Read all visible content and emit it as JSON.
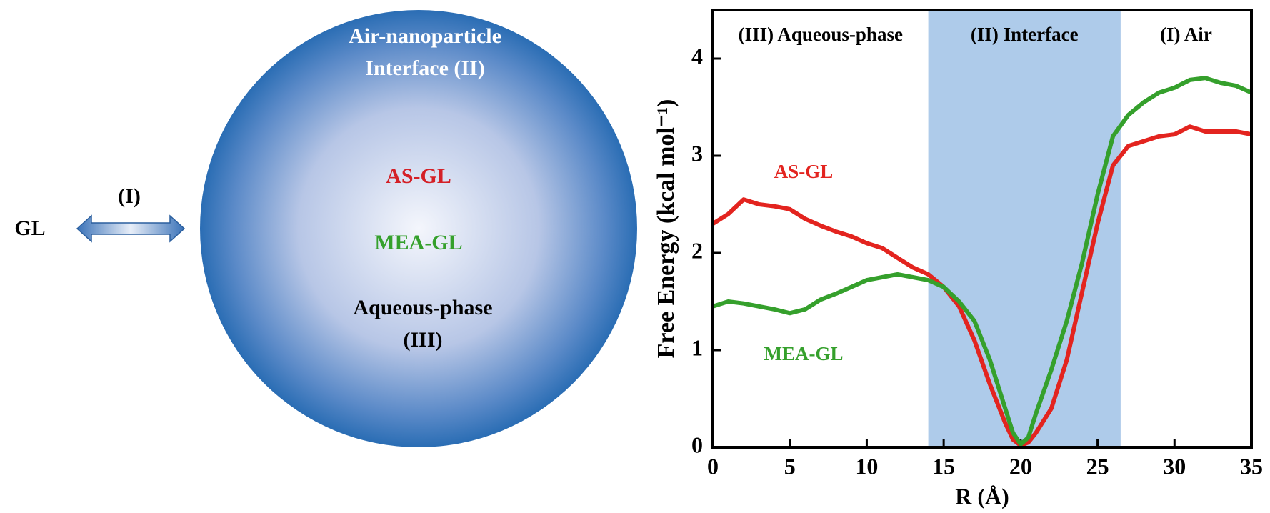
{
  "diagram": {
    "left_label": "GL",
    "arrow_label": "(I)",
    "sphere_top": [
      "Air-nanoparticle",
      "Interface (II)"
    ],
    "sphere_species": [
      {
        "text": "AS-GL",
        "color": "#d42027"
      },
      {
        "text": "MEA-GL",
        "color": "#35a02c"
      }
    ],
    "sphere_bottom": [
      "Aqueous-phase",
      "(III)"
    ]
  },
  "chart_data": {
    "type": "line",
    "xlabel": "R (Å)",
    "ylabel": "Free Energy (kcal mol⁻¹)",
    "regions": [
      {
        "label": "(III) Aqueous-phase"
      },
      {
        "label": "(II) Interface",
        "span": [
          14,
          26.5
        ],
        "color": "#aecbea"
      },
      {
        "label": "(I) Air"
      }
    ],
    "x": [
      0,
      1,
      2,
      3,
      4,
      5,
      6,
      7,
      8,
      9,
      10,
      11,
      12,
      13,
      14,
      15,
      16,
      17,
      18,
      19,
      19.5,
      20,
      20.5,
      21,
      22,
      23,
      24,
      25,
      26,
      27,
      28,
      29,
      30,
      31,
      32,
      33,
      34,
      35
    ],
    "series": [
      {
        "name": "AS-GL",
        "color": "#e3241f",
        "values": [
          2.3,
          2.4,
          2.55,
          2.5,
          2.48,
          2.45,
          2.35,
          2.28,
          2.22,
          2.17,
          2.1,
          2.05,
          1.95,
          1.85,
          1.78,
          1.65,
          1.45,
          1.1,
          0.65,
          0.25,
          0.08,
          0.02,
          0.05,
          0.15,
          0.4,
          0.9,
          1.6,
          2.3,
          2.9,
          3.1,
          3.15,
          3.2,
          3.22,
          3.3,
          3.25,
          3.25,
          3.25,
          3.22
        ]
      },
      {
        "name": "MEA-GL",
        "color": "#35a02c",
        "values": [
          1.45,
          1.5,
          1.48,
          1.45,
          1.42,
          1.38,
          1.42,
          1.52,
          1.58,
          1.65,
          1.72,
          1.75,
          1.78,
          1.75,
          1.72,
          1.65,
          1.5,
          1.3,
          0.9,
          0.4,
          0.15,
          0.03,
          0.1,
          0.35,
          0.8,
          1.3,
          1.9,
          2.6,
          3.2,
          3.42,
          3.55,
          3.65,
          3.7,
          3.78,
          3.8,
          3.75,
          3.72,
          3.65
        ]
      }
    ],
    "xlim": [
      0,
      35
    ],
    "xticks": [
      0,
      5,
      10,
      15,
      20,
      25,
      30,
      35
    ],
    "ylim": [
      0,
      4.5
    ],
    "yticks": [
      0,
      1,
      2,
      3,
      4
    ]
  }
}
